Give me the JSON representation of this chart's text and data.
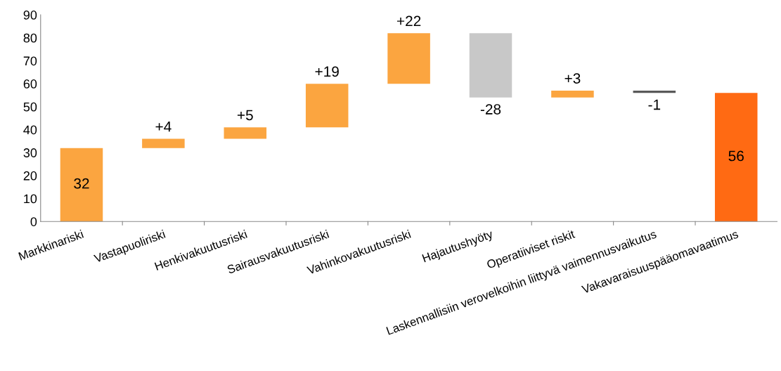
{
  "chart_data": {
    "type": "bar",
    "categories": [
      "Markkinariski",
      "Vastapuoliriski",
      "Henkivakuutusriski",
      "Sairausvakuutusriski",
      "Vahinkovakuutusriski",
      "Hajautushyöty",
      "Operatiiviset riskit",
      "Laskennallisiin verovelkoihin liittyvä vaimennusvaikutus",
      "Vakavaraisuuspääomavaatimus"
    ],
    "values": [
      32,
      4,
      5,
      19,
      22,
      -28,
      3,
      -1,
      56
    ],
    "base": [
      0,
      32,
      36,
      41,
      60,
      82,
      54,
      57,
      0
    ],
    "colors": [
      "#fba540",
      "#fba540",
      "#fba540",
      "#fba540",
      "#fba540",
      "#c8c8c8",
      "#fba540",
      "#595959",
      "#ff6a13"
    ],
    "value_labels": [
      "32",
      "+4",
      "+5",
      "+19",
      "+22",
      "-28",
      "+3",
      "-1",
      "56"
    ],
    "ylim": [
      0,
      90
    ],
    "yticks": [
      0,
      10,
      20,
      30,
      40,
      50,
      60,
      70,
      80,
      90
    ],
    "grid": false,
    "legend": false
  }
}
